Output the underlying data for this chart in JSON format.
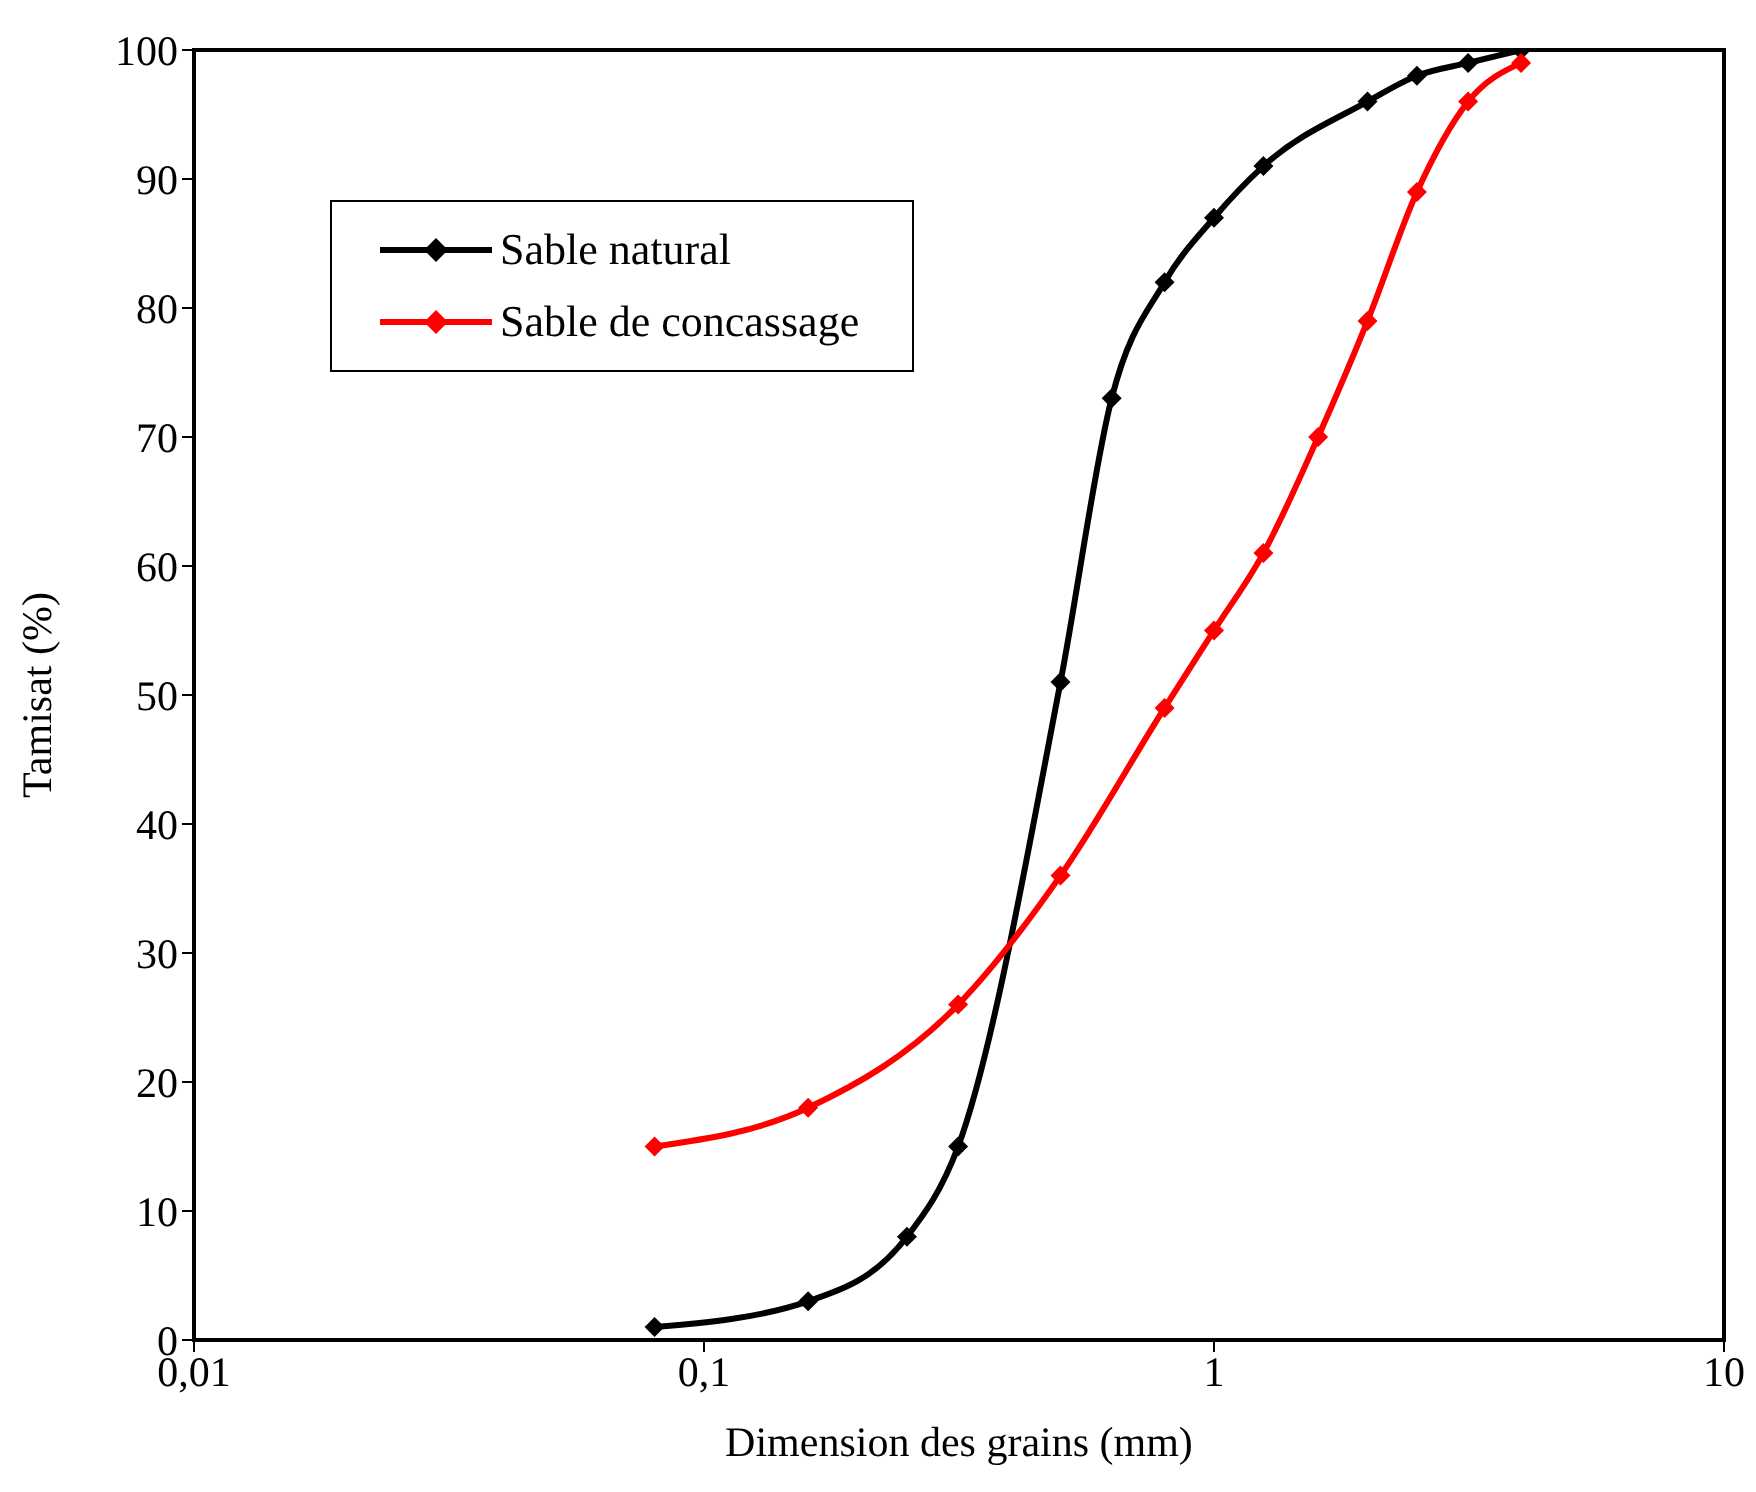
{
  "chart_data": {
    "type": "line",
    "xlabel": "Dimension des grains (mm)",
    "ylabel": "Tamisat (%)",
    "log": "x",
    "xlim": [
      0.01,
      10
    ],
    "xticks": [
      {
        "value": 0.01,
        "label": "0,01"
      },
      {
        "value": 0.1,
        "label": "0,1"
      },
      1,
      10
    ],
    "ylim": [
      0,
      100
    ],
    "yticks": [
      0,
      10,
      20,
      30,
      40,
      50,
      60,
      70,
      80,
      90,
      100
    ],
    "grid": false,
    "legend": "top left",
    "marker": "diamond",
    "line_style": "solid",
    "series": [
      {
        "name": "Sable natural",
        "color": "#000000",
        "x": [
          0.08,
          0.16,
          0.25,
          0.315,
          0.5,
          0.63,
          0.8,
          1,
          1.25,
          2,
          2.5,
          3.15,
          4
        ],
        "values": [
          1,
          3,
          8,
          15,
          51,
          73,
          82,
          87,
          91,
          96,
          98,
          99,
          100
        ]
      },
      {
        "name": "Sable de concassage",
        "color": "#ff0000",
        "x": [
          0.08,
          0.16,
          0.315,
          0.5,
          0.8,
          1,
          1.25,
          1.6,
          2,
          2.5,
          3.15,
          4
        ],
        "values": [
          15,
          18,
          26,
          36,
          49,
          55,
          61,
          70,
          79,
          89,
          96,
          99
        ]
      }
    ]
  }
}
